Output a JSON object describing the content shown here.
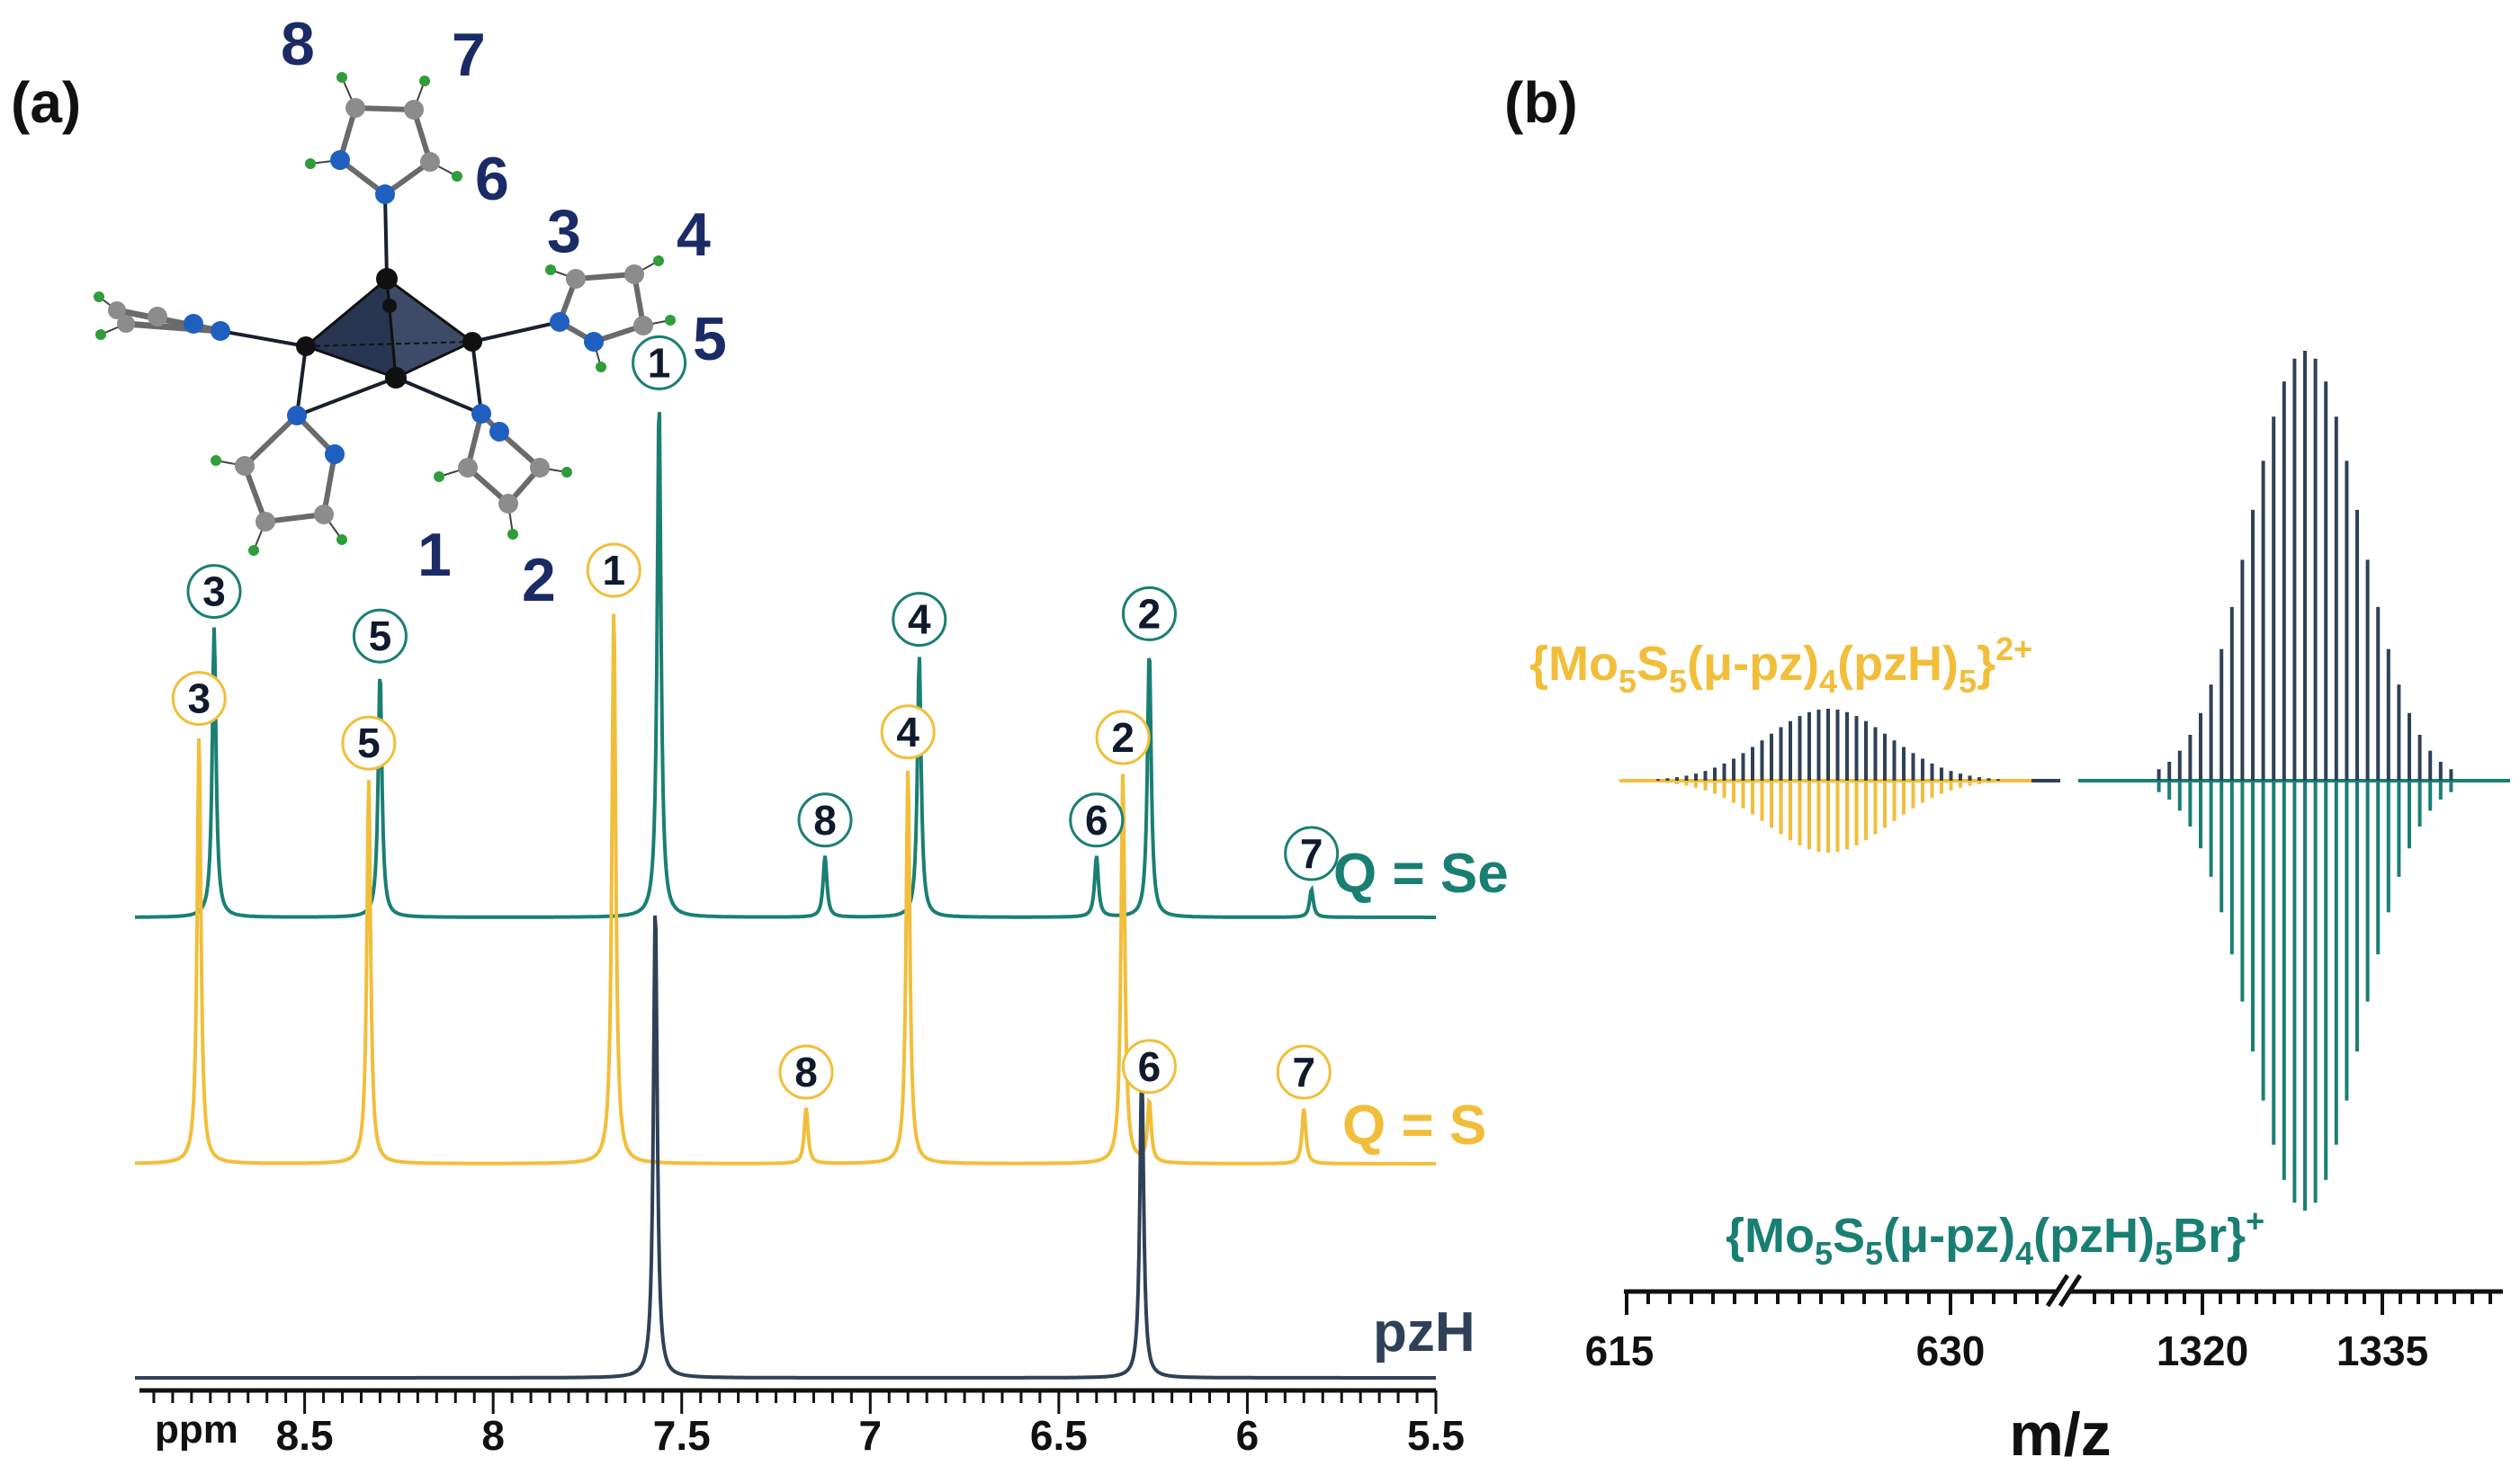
{
  "panels": {
    "a": {
      "label": "(a)"
    },
    "b": {
      "label": "(b)"
    }
  },
  "colors": {
    "se": "#1a7f73",
    "s": "#f2be3a",
    "pzh": "#2f4158",
    "navy": "#1a2b66",
    "metal": "#2b3550",
    "nitrogen": "#1f5fbf",
    "carbon": "#8c8c8c",
    "hydrogen": "#2e9d3a"
  },
  "molecule": {
    "atom_labels": [
      "8",
      "7",
      "6",
      "3",
      "4",
      "5",
      "1",
      "2"
    ]
  },
  "chart_data": [
    {
      "type": "line",
      "xlabel": "ppm",
      "xlim": [
        8.95,
        5.5
      ],
      "x_reversed": true,
      "xticks": [
        {
          "value": 8.5,
          "label": "8.5"
        },
        {
          "value": 8.0,
          "label": "8"
        },
        {
          "value": 7.5,
          "label": "7.5"
        },
        {
          "value": 7.0,
          "label": "7"
        },
        {
          "value": 6.5,
          "label": "6.5"
        },
        {
          "value": 6.0,
          "label": "6"
        },
        {
          "value": 5.5,
          "label": "5.5"
        }
      ],
      "series": [
        {
          "name": "Q = Se",
          "color": "#1a7f73",
          "peaks": [
            {
              "ppm": 8.74,
              "height": 0.52,
              "label": "3"
            },
            {
              "ppm": 8.3,
              "height": 0.44,
              "label": "5"
            },
            {
              "ppm": 7.56,
              "height": 0.93,
              "label": "1"
            },
            {
              "ppm": 7.12,
              "height": 0.11,
              "label": "8"
            },
            {
              "ppm": 6.87,
              "height": 0.47,
              "label": "4"
            },
            {
              "ppm": 6.4,
              "height": 0.11,
              "label": "6"
            },
            {
              "ppm": 6.26,
              "height": 0.48,
              "label": "2"
            },
            {
              "ppm": 5.83,
              "height": 0.05,
              "label": "7"
            }
          ]
        },
        {
          "name": "Q = S",
          "color": "#f2be3a",
          "peaks": [
            {
              "ppm": 8.78,
              "height": 0.77,
              "label": "3"
            },
            {
              "ppm": 8.33,
              "height": 0.69,
              "label": "5"
            },
            {
              "ppm": 7.68,
              "height": 1.0,
              "label": "1"
            },
            {
              "ppm": 7.17,
              "height": 0.1,
              "label": "8"
            },
            {
              "ppm": 6.9,
              "height": 0.71,
              "label": "4"
            },
            {
              "ppm": 6.33,
              "height": 0.7,
              "label": "2"
            },
            {
              "ppm": 6.26,
              "height": 0.11,
              "label": "6"
            },
            {
              "ppm": 5.85,
              "height": 0.1,
              "label": "7"
            }
          ]
        },
        {
          "name": "pzH",
          "color": "#2f4158",
          "peaks": [
            {
              "ppm": 7.57,
              "height": 0.85,
              "label": ""
            },
            {
              "ppm": 6.28,
              "height": 0.56,
              "label": ""
            }
          ]
        }
      ]
    },
    {
      "type": "bar",
      "xlabel": "m/z",
      "axis_break": true,
      "xticks": [
        "615",
        "630",
        "1320",
        "1335"
      ],
      "series": [
        {
          "name": "{Mo5S5(μ-pz)4(pzH)5}2+",
          "color": "#f2be3a",
          "mirrored": true,
          "center_mz": 624.5,
          "observed_color": "#2f4158"
        },
        {
          "name": "{Mo5S5(μ-pz)4(pzH)5Br}+",
          "color": "#1a7f73",
          "mirrored": true,
          "center_mz": 1327,
          "observed_color": "#2f4158"
        }
      ]
    }
  ],
  "ms_labels": {
    "ion1": {
      "main": "{Mo",
      "s1": "5",
      "t1": "S",
      "s2": "5",
      "t2": "(μ-pz)",
      "s3": "4",
      "t3": "(pzH)",
      "s4": "5",
      "t4": "}",
      "sup": "2+"
    },
    "ion2": {
      "main": "{Mo",
      "s1": "5",
      "t1": "S",
      "s2": "5",
      "t2": "(μ-pz)",
      "s3": "4",
      "t3": "(pzH)",
      "s4": "5",
      "t4": "Br}",
      "sup": "+"
    }
  }
}
